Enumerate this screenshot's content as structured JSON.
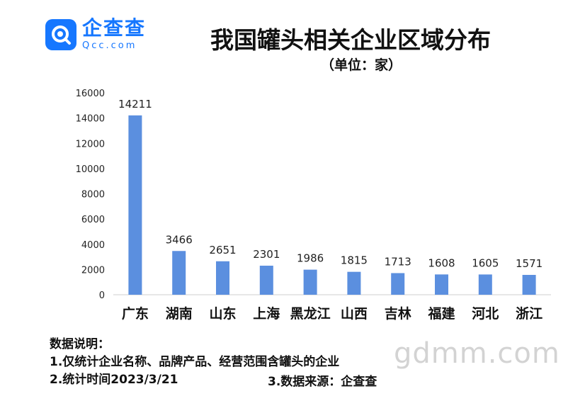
{
  "logo": {
    "name_cn": "企查查",
    "name_en": "Qcc.com",
    "icon": "qcc-logo-icon"
  },
  "header": {
    "title": "我国罐头相关企业区域分布",
    "unit": "（单位：家）"
  },
  "chart_data": {
    "type": "bar",
    "title": "我国罐头相关企业区域分布",
    "subtitle": "（单位：家）",
    "categories": [
      "广东",
      "湖南",
      "山东",
      "上海",
      "黑龙江",
      "山西",
      "吉林",
      "福建",
      "河北",
      "浙江"
    ],
    "values": [
      14211,
      3466,
      2651,
      2301,
      1986,
      1815,
      1713,
      1608,
      1605,
      1571
    ],
    "yticks": [
      0,
      2000,
      4000,
      6000,
      8000,
      10000,
      12000,
      14000,
      16000
    ],
    "ylim": [
      0,
      16000
    ],
    "grid": false,
    "legend": "none",
    "bar_color": "#5b8fdf"
  },
  "notes": {
    "heading": "数据说明：",
    "line1": "1.仅统计企业名称、品牌产品、经营范围含罐头的企业",
    "line2": "2.统计时间2023/3/21",
    "line3": "3.数据来源：企查查"
  },
  "watermark": "gdmm.com"
}
